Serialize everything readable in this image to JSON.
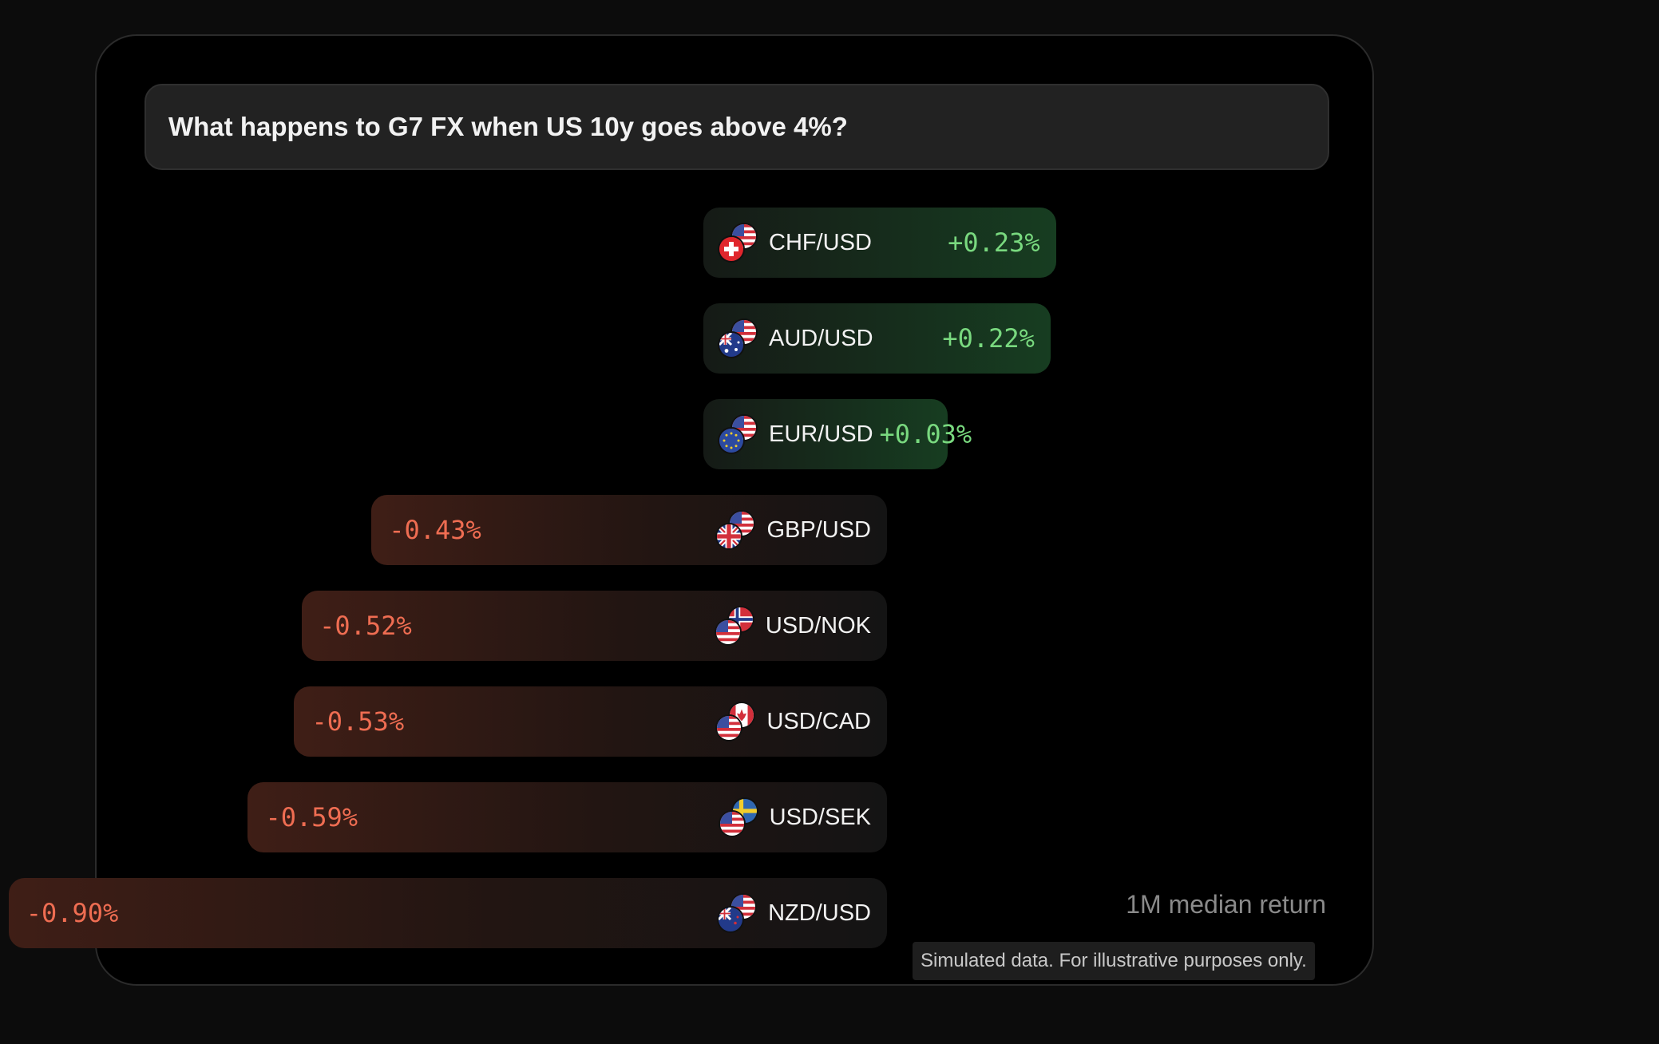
{
  "question": "What happens to G7 FX when US 10y goes above 4%?",
  "median_label": "1M median return",
  "disclaimer": "Simulated data. For illustrative purposes only.",
  "colors": {
    "positive": "#79d97f",
    "negative": "#ef6d52"
  },
  "chart_data": {
    "type": "bar",
    "orientation": "horizontal",
    "categories": [
      "CHF/USD",
      "AUD/USD",
      "EUR/USD",
      "GBP/USD",
      "USD/NOK",
      "USD/CAD",
      "USD/SEK",
      "NZD/USD"
    ],
    "values": [
      0.23,
      0.22,
      0.03,
      -0.43,
      -0.52,
      -0.53,
      -0.59,
      -0.9
    ],
    "value_labels": [
      "+0.23%",
      "+0.22%",
      "+0.03%",
      "-0.43%",
      "-0.52%",
      "-0.53%",
      "-0.59%",
      "-0.90%"
    ],
    "flags": [
      [
        "ch-flag-icon",
        "us-flag-icon"
      ],
      [
        "au-flag-icon",
        "us-flag-icon"
      ],
      [
        "eu-flag-icon",
        "us-flag-icon"
      ],
      [
        "gb-flag-icon",
        "us-flag-icon"
      ],
      [
        "us-flag-icon",
        "no-flag-icon"
      ],
      [
        "us-flag-icon",
        "ca-flag-icon"
      ],
      [
        "us-flag-icon",
        "se-flag-icon"
      ],
      [
        "nz-flag-icon",
        "us-flag-icon"
      ]
    ],
    "title": "",
    "xlabel": "",
    "ylabel": "",
    "grid": false
  }
}
